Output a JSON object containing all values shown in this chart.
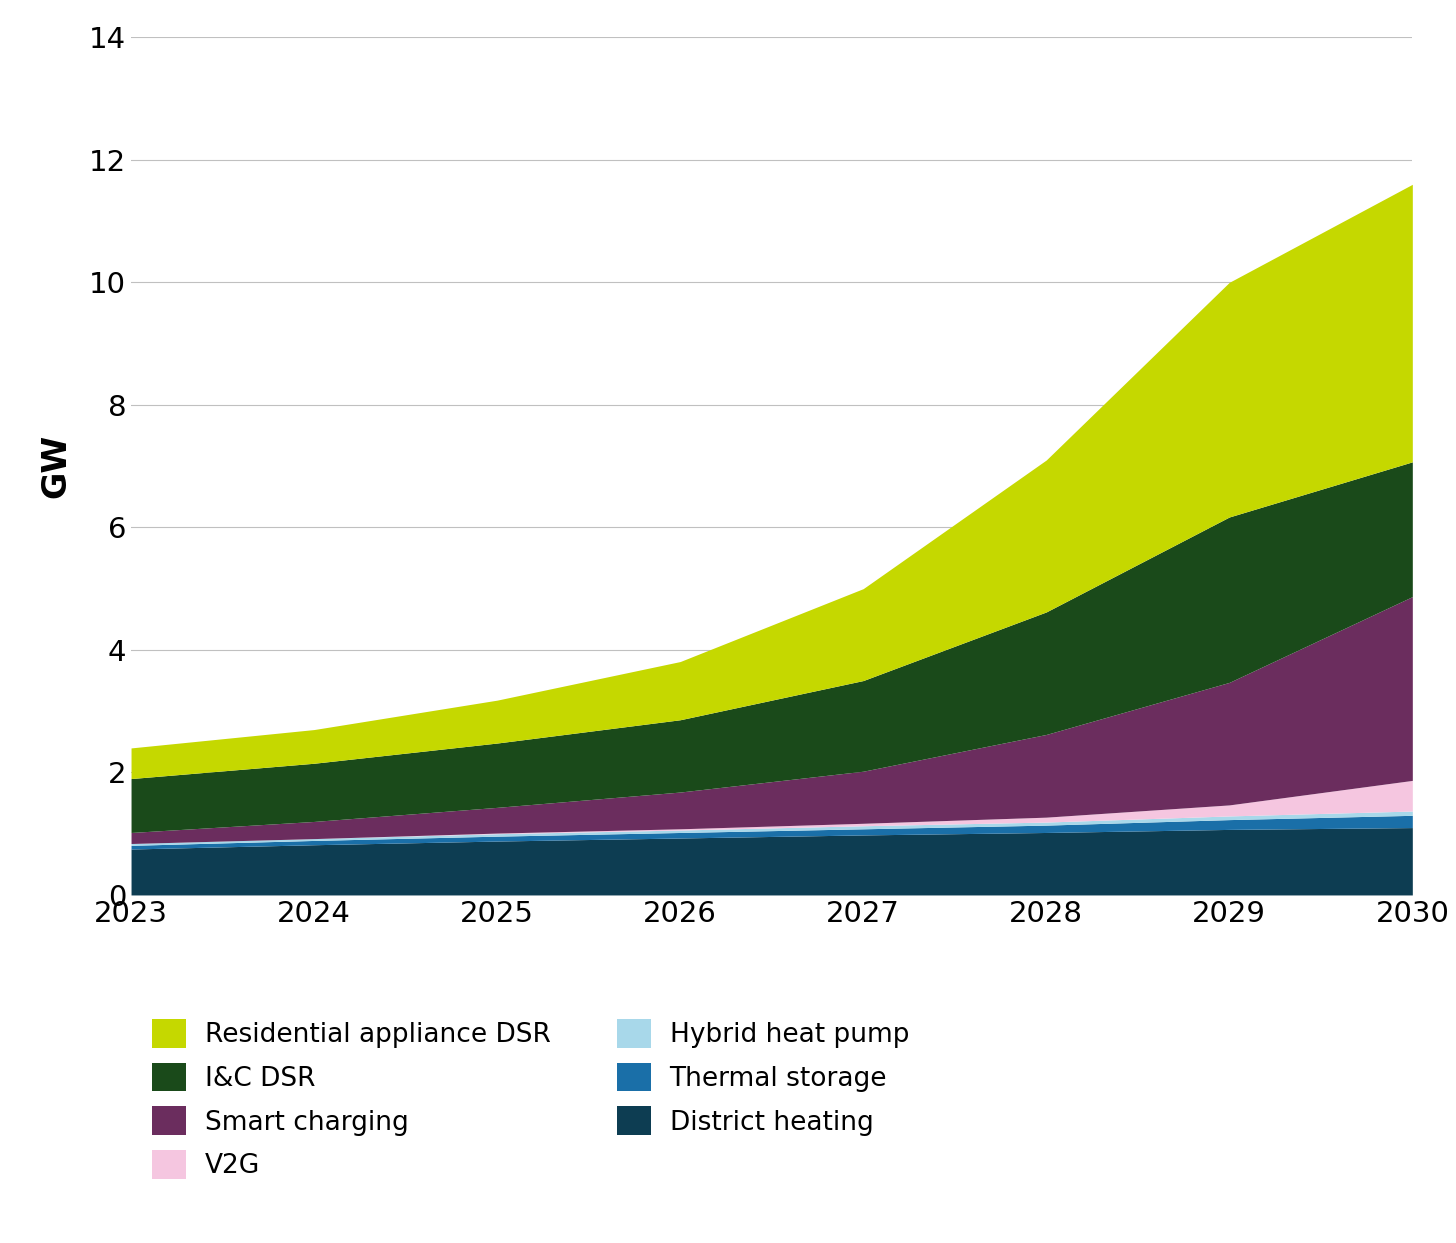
{
  "years": [
    2023,
    2024,
    2025,
    2026,
    2027,
    2028,
    2029,
    2030
  ],
  "series": {
    "District heating": {
      "values": [
        0.75,
        0.82,
        0.88,
        0.93,
        0.98,
        1.02,
        1.07,
        1.1
      ],
      "color": "#0d3d52"
    },
    "Thermal storage": {
      "values": [
        0.06,
        0.07,
        0.08,
        0.09,
        0.1,
        0.12,
        0.16,
        0.2
      ],
      "color": "#1a6fa8"
    },
    "Hybrid heat pump": {
      "values": [
        0.03,
        0.03,
        0.04,
        0.04,
        0.05,
        0.05,
        0.06,
        0.07
      ],
      "color": "#a8d8ea"
    },
    "V2G": {
      "values": [
        0.0,
        0.0,
        0.01,
        0.02,
        0.04,
        0.08,
        0.18,
        0.5
      ],
      "color": "#f5c6e0"
    },
    "Smart charging": {
      "values": [
        0.18,
        0.28,
        0.42,
        0.6,
        0.85,
        1.35,
        2.0,
        3.0
      ],
      "color": "#6b2d5e"
    },
    "I&C DSR": {
      "values": [
        0.88,
        0.95,
        1.05,
        1.18,
        1.48,
        2.0,
        2.7,
        2.2
      ],
      "color": "#1a4a1a"
    },
    "Residential appliance DSR": {
      "values": [
        0.5,
        0.55,
        0.7,
        0.95,
        1.5,
        2.48,
        3.83,
        4.53
      ],
      "color": "#c5d800"
    }
  },
  "ylabel": "GW",
  "ylim": [
    0,
    14
  ],
  "yticks": [
    0,
    2,
    4,
    6,
    8,
    10,
    12,
    14
  ],
  "xlim": [
    2023,
    2030
  ],
  "xticks": [
    2023,
    2024,
    2025,
    2026,
    2027,
    2028,
    2029,
    2030
  ],
  "grid_color": "#c0c0c0",
  "stack_order": [
    "District heating",
    "Thermal storage",
    "Hybrid heat pump",
    "V2G",
    "Smart charging",
    "I&C DSR",
    "Residential appliance DSR"
  ],
  "legend_order": [
    [
      "Residential appliance DSR",
      "I&C DSR"
    ],
    [
      "Smart charging",
      "V2G"
    ],
    [
      "Hybrid heat pump",
      "Thermal storage"
    ],
    [
      "District heating",
      null
    ]
  ]
}
